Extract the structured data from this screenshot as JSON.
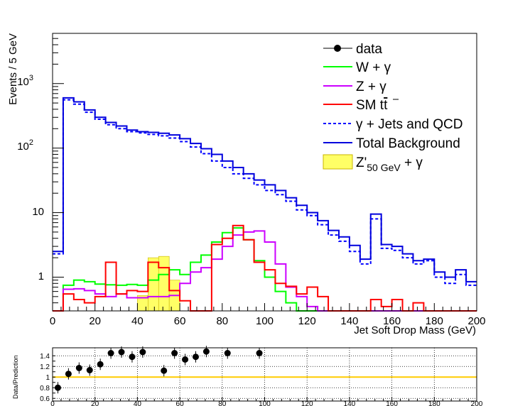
{
  "chart_data": [
    {
      "type": "line",
      "style": "step-histogram",
      "x_bin_width": 5,
      "x_start": 0,
      "xlabel": "Jet Soft Drop Mass (GeV)",
      "ylabel": "Events / 5 GeV",
      "xlim": [
        0,
        200
      ],
      "ylim": [
        0.3,
        6000
      ],
      "yscale": "log",
      "x_ticks": [
        "0",
        "20",
        "40",
        "60",
        "80",
        "100",
        "120",
        "140",
        "160",
        "180",
        "200"
      ],
      "y_tick_labels": {
        "y1": "1",
        "y10": "10",
        "y100_base": "10",
        "y100_exp": "2",
        "y1000_base": "10",
        "y1000_exp": "3"
      },
      "legend_position": "top-right",
      "legend": {
        "data": "data",
        "wgamma": "W + γ",
        "zgamma": "Z + γ",
        "tt_prefix": "SM t",
        "tt_bar": "t",
        "gjets": "γ + Jets and QCD",
        "total": "Total Background",
        "signal_base": "Z'",
        "signal_sub": "50 GeV",
        "signal_suffix": " + γ"
      },
      "series": [
        {
          "key": "wgamma",
          "color": "#00ff00",
          "line": "solid",
          "values": [
            0,
            0.75,
            0.9,
            0.85,
            0.78,
            0.76,
            0.75,
            0.77,
            0.75,
            0.9,
            1.1,
            1.3,
            1.1,
            1.7,
            2.2,
            3.5,
            4.9,
            5.8,
            3.8,
            1.8,
            1.0,
            0.6,
            0.4,
            0.3,
            0,
            0,
            0,
            0,
            0,
            0,
            0,
            0,
            0,
            0,
            0,
            0,
            0,
            0,
            0,
            0
          ]
        },
        {
          "key": "zgamma",
          "color": "#cc00ff",
          "line": "solid",
          "values": [
            0,
            0.65,
            0.66,
            0.62,
            0.55,
            0.5,
            0.55,
            0.48,
            0.48,
            0.5,
            0.5,
            0.52,
            0.8,
            1.2,
            1.4,
            1.9,
            3.0,
            4.5,
            5.0,
            5.2,
            3.5,
            1.6,
            0.7,
            0.5,
            0.35,
            0,
            0,
            0,
            0,
            0,
            0,
            0,
            0,
            0,
            0,
            0,
            0,
            0,
            0,
            0
          ]
        },
        {
          "key": "tt",
          "color": "#ff0000",
          "line": "solid",
          "values": [
            0,
            0.55,
            0.45,
            0.4,
            0.5,
            1.7,
            0.55,
            0.62,
            0.6,
            1.7,
            1.4,
            0.62,
            0.43,
            0,
            0,
            3.2,
            4.0,
            6.3,
            3.8,
            1.7,
            1.3,
            0.8,
            0.72,
            0.55,
            0.7,
            0.5,
            0.3,
            0,
            0,
            0,
            0.45,
            0.35,
            0.45,
            0,
            0.4,
            0,
            0,
            0,
            0,
            0
          ]
        },
        {
          "key": "gjets",
          "color": "#0000ff",
          "line": "dashed",
          "values": [
            2.3,
            560,
            480,
            360,
            280,
            230,
            200,
            180,
            172,
            163,
            155,
            143,
            126,
            104,
            82,
            63,
            50,
            40,
            34,
            27,
            22,
            19,
            15,
            11,
            9,
            6.5,
            4.5,
            3.6,
            2.5,
            1.6,
            8,
            2.8,
            2.6,
            2.0,
            1.6,
            1.8,
            1.0,
            0.8,
            1.1,
            0.75
          ]
        },
        {
          "key": "total",
          "color": "#0000dd",
          "line": "solid",
          "values": [
            2.5,
            600,
            520,
            390,
            300,
            250,
            220,
            190,
            180,
            175,
            170,
            160,
            140,
            118,
            98,
            80,
            63,
            50,
            40,
            32,
            27,
            22,
            17,
            13,
            10,
            7.5,
            5.3,
            4.2,
            3.1,
            1.9,
            9.5,
            3.2,
            3.0,
            2.3,
            1.8,
            1.9,
            1.2,
            1.0,
            1.3,
            0.85
          ]
        },
        {
          "key": "signal",
          "color": "#ffff66",
          "line": "fill",
          "values": [
            0,
            0,
            0,
            0,
            0,
            0,
            0,
            0,
            0.52,
            2.0,
            2.1,
            0.9,
            0,
            0,
            0,
            0,
            0,
            0,
            0,
            0,
            0,
            0,
            0,
            0,
            0,
            0,
            0,
            0,
            0,
            0,
            0,
            0,
            0,
            0,
            0,
            0,
            0,
            0,
            0,
            0
          ]
        }
      ]
    },
    {
      "type": "scatter",
      "ylabel": "Data/Prediction",
      "xlim": [
        0,
        200
      ],
      "ylim": [
        0.55,
        1.55
      ],
      "x_ticks": [
        "0",
        "20",
        "40",
        "60",
        "80",
        "100",
        "120",
        "140",
        "160",
        "180",
        "200"
      ],
      "y_ticks": [
        "0.6",
        "0.8",
        "1",
        "1.2",
        "1.4"
      ],
      "grid": true,
      "points": [
        {
          "x": 2.5,
          "y": 0.8
        },
        {
          "x": 7.5,
          "y": 1.06
        },
        {
          "x": 12.5,
          "y": 1.17
        },
        {
          "x": 17.5,
          "y": 1.13
        },
        {
          "x": 22.5,
          "y": 1.24
        },
        {
          "x": 27.5,
          "y": 1.45
        },
        {
          "x": 32.5,
          "y": 1.47
        },
        {
          "x": 37.5,
          "y": 1.38
        },
        {
          "x": 42.5,
          "y": 1.47
        },
        {
          "x": 52.5,
          "y": 1.12
        },
        {
          "x": 57.5,
          "y": 1.45
        },
        {
          "x": 62.5,
          "y": 1.33
        },
        {
          "x": 67.5,
          "y": 1.38
        },
        {
          "x": 72.5,
          "y": 1.48
        },
        {
          "x": 82.5,
          "y": 1.45
        },
        {
          "x": 97.5,
          "y": 1.45
        }
      ],
      "reference_line": 1.0,
      "reference_color": "#ffcc00"
    }
  ]
}
